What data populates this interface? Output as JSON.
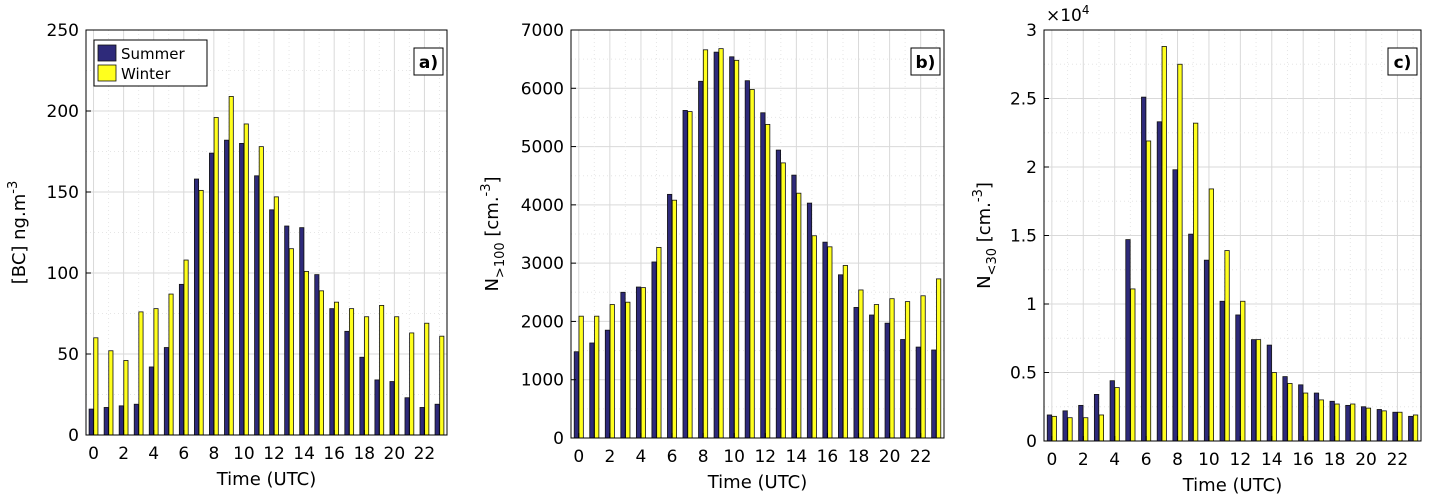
{
  "colors": {
    "summer": "#2e2a7a",
    "winter": "#ffff1e"
  },
  "legend": [
    {
      "name": "Summer",
      "color": "#2e2a7a"
    },
    {
      "name": "Winter",
      "color": "#ffff1e"
    }
  ],
  "chart_data": [
    {
      "type": "bar",
      "panel": "a)",
      "xlabel": "Time (UTC)",
      "ylabel": "[BC] ng.m-3",
      "xlim": [
        -0.5,
        23.5
      ],
      "ylim": [
        0,
        250
      ],
      "yticks": [
        0,
        50,
        100,
        150,
        200,
        250
      ],
      "ytick_labels": [
        "0",
        "50",
        "100",
        "150",
        "200",
        "250"
      ],
      "xticks": [
        0,
        2,
        4,
        6,
        8,
        10,
        12,
        14,
        16,
        18,
        20,
        22
      ],
      "xtick_labels": [
        "0",
        "2",
        "4",
        "6",
        "8",
        "10",
        "12",
        "14",
        "16",
        "18",
        "20",
        "22"
      ],
      "exponent": "",
      "grid": true,
      "legend_position": "top-left",
      "x": [
        0,
        1,
        2,
        3,
        4,
        5,
        6,
        7,
        8,
        9,
        10,
        11,
        12,
        13,
        14,
        15,
        16,
        17,
        18,
        19,
        20,
        21,
        22,
        23
      ],
      "series": [
        {
          "name": "Summer",
          "values": [
            16,
            17,
            18,
            19,
            42,
            54,
            93,
            158,
            174,
            182,
            180,
            160,
            139,
            129,
            128,
            99,
            78,
            64,
            48,
            34,
            33,
            23,
            17,
            19
          ]
        },
        {
          "name": "Winter",
          "values": [
            60,
            52,
            46,
            76,
            78,
            87,
            108,
            151,
            196,
            209,
            192,
            178,
            147,
            115,
            101,
            89,
            82,
            78,
            73,
            80,
            73,
            63,
            69,
            61
          ]
        }
      ]
    },
    {
      "type": "bar",
      "panel": "b)",
      "xlabel": "Time (UTC)",
      "ylabel": "N>100 [cm.-3]",
      "xlim": [
        -0.5,
        23.5
      ],
      "ylim": [
        0,
        7000
      ],
      "yticks": [
        0,
        1000,
        2000,
        3000,
        4000,
        5000,
        6000,
        7000
      ],
      "ytick_labels": [
        "0",
        "1000",
        "2000",
        "3000",
        "4000",
        "5000",
        "6000",
        "7000"
      ],
      "xticks": [
        0,
        2,
        4,
        6,
        8,
        10,
        12,
        14,
        16,
        18,
        20,
        22
      ],
      "xtick_labels": [
        "0",
        "2",
        "4",
        "6",
        "8",
        "10",
        "12",
        "14",
        "16",
        "18",
        "20",
        "22"
      ],
      "exponent": "",
      "grid": true,
      "x": [
        0,
        1,
        2,
        3,
        4,
        5,
        6,
        7,
        8,
        9,
        10,
        11,
        12,
        13,
        14,
        15,
        16,
        17,
        18,
        19,
        20,
        21,
        22,
        23
      ],
      "series": [
        {
          "name": "Summer",
          "values": [
            1480,
            1630,
            1850,
            2500,
            2590,
            3020,
            4180,
            5620,
            6120,
            6620,
            6540,
            6130,
            5580,
            4940,
            4510,
            4030,
            3360,
            2800,
            2240,
            2110,
            1970,
            1690,
            1560,
            1510
          ]
        },
        {
          "name": "Winter",
          "values": [
            2090,
            2090,
            2290,
            2330,
            2580,
            3270,
            4080,
            5600,
            6660,
            6680,
            6480,
            5980,
            5380,
            4720,
            4200,
            3470,
            3280,
            2960,
            2540,
            2290,
            2390,
            2340,
            2440,
            2730
          ]
        }
      ]
    },
    {
      "type": "bar",
      "panel": "c)",
      "xlabel": "Time (UTC)",
      "ylabel": "N<30 [cm.-3]",
      "xlim": [
        -0.5,
        23.5
      ],
      "ylim": [
        0,
        30000
      ],
      "yticks": [
        0,
        5000,
        10000,
        15000,
        20000,
        25000,
        30000
      ],
      "ytick_labels": [
        "0",
        "0.5",
        "1",
        "1.5",
        "2",
        "2.5",
        "3"
      ],
      "xticks": [
        0,
        2,
        4,
        6,
        8,
        10,
        12,
        14,
        16,
        18,
        20,
        22
      ],
      "xtick_labels": [
        "0",
        "2",
        "4",
        "6",
        "8",
        "10",
        "12",
        "14",
        "16",
        "18",
        "20",
        "22"
      ],
      "exponent": "×10^4",
      "grid": true,
      "x": [
        0,
        1,
        2,
        3,
        4,
        5,
        6,
        7,
        8,
        9,
        10,
        11,
        12,
        13,
        14,
        15,
        16,
        17,
        18,
        19,
        20,
        21,
        22,
        23
      ],
      "series": [
        {
          "name": "Summer",
          "values": [
            1900,
            2200,
            2600,
            3400,
            4400,
            14700,
            25100,
            23300,
            19800,
            15100,
            13200,
            10200,
            9200,
            7400,
            7000,
            4700,
            4100,
            3500,
            2900,
            2600,
            2500,
            2300,
            2100,
            1800
          ]
        },
        {
          "name": "Winter",
          "values": [
            1800,
            1700,
            1700,
            1900,
            3900,
            11100,
            21900,
            28800,
            27500,
            23200,
            18400,
            13900,
            10200,
            7400,
            5000,
            4200,
            3500,
            3000,
            2700,
            2700,
            2400,
            2200,
            2100,
            1900
          ]
        }
      ]
    }
  ]
}
